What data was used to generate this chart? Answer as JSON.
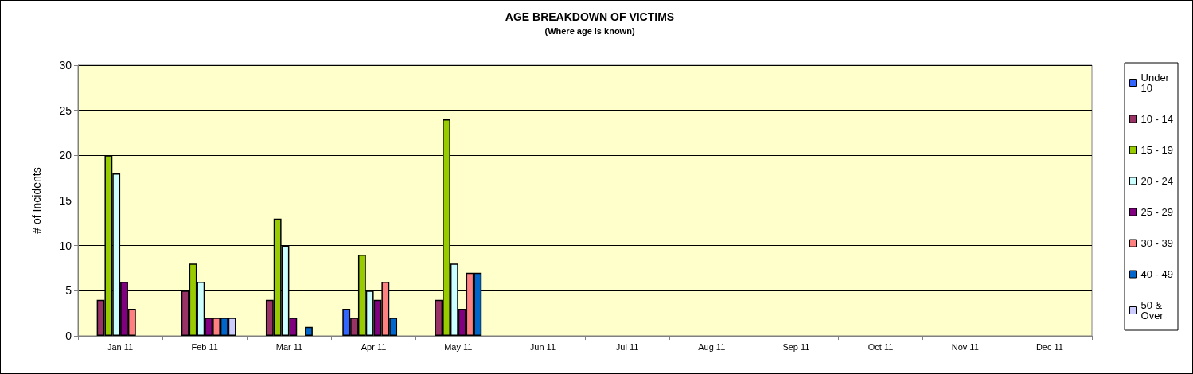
{
  "chart_data": {
    "type": "bar",
    "title": "AGE BREAKDOWN OF VICTIMS",
    "subtitle": "(Where age is known)",
    "ylabel": "# of Incidents",
    "categories": [
      "Jan 11",
      "Feb 11",
      "Mar 11",
      "Apr 11",
      "May 11",
      "Jun 11",
      "Jul 11",
      "Aug 11",
      "Sep 11",
      "Oct 11",
      "Nov 11",
      "Dec 11"
    ],
    "series": [
      {
        "name": "Under 10",
        "color": "#3366ff",
        "values": [
          null,
          null,
          null,
          3,
          null,
          null,
          null,
          null,
          null,
          null,
          null,
          null
        ]
      },
      {
        "name": "10 - 14",
        "color": "#993366",
        "values": [
          4,
          5,
          4,
          2,
          4,
          null,
          null,
          null,
          null,
          null,
          null,
          null
        ]
      },
      {
        "name": "15 - 19",
        "color": "#99cc00",
        "values": [
          20,
          8,
          13,
          9,
          24,
          null,
          null,
          null,
          null,
          null,
          null,
          null
        ]
      },
      {
        "name": "20 - 24",
        "color": "#ccffff",
        "values": [
          18,
          6,
          10,
          5,
          8,
          null,
          null,
          null,
          null,
          null,
          null,
          null
        ]
      },
      {
        "name": "25 - 29",
        "color": "#800080",
        "values": [
          6,
          2,
          2,
          4,
          3,
          null,
          null,
          null,
          null,
          null,
          null,
          null
        ]
      },
      {
        "name": "30 - 39",
        "color": "#ff8080",
        "values": [
          3,
          2,
          null,
          6,
          7,
          null,
          null,
          null,
          null,
          null,
          null,
          null
        ]
      },
      {
        "name": "40 - 49",
        "color": "#0066cc",
        "values": [
          null,
          2,
          1,
          2,
          7,
          null,
          null,
          null,
          null,
          null,
          null,
          null
        ]
      },
      {
        "name": "50 & Over",
        "color": "#ccccff",
        "values": [
          null,
          2,
          null,
          null,
          null,
          null,
          null,
          null,
          null,
          null,
          null,
          null
        ]
      }
    ],
    "ylim": [
      0,
      30
    ],
    "yticks": [
      0,
      5,
      10,
      15,
      20,
      25,
      30
    ],
    "grid": "y",
    "legend": "right"
  }
}
